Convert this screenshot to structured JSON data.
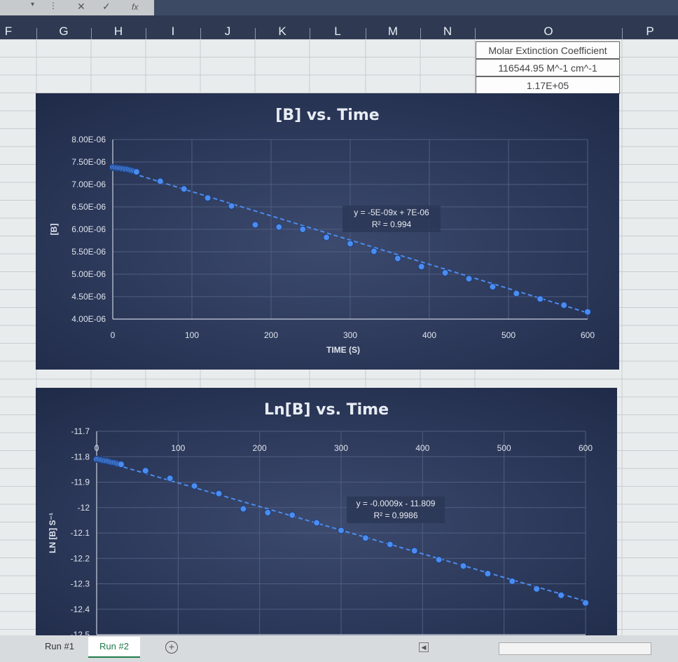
{
  "formula_bar": {
    "cancel_icon": "x-icon",
    "enter_icon": "check-icon",
    "fx_label": "fx"
  },
  "columns": [
    "F",
    "G",
    "H",
    "I",
    "J",
    "K",
    "L",
    "M",
    "N",
    "O",
    "P"
  ],
  "table": {
    "header": "Molar Extinction Coefficient",
    "value": "116544.95 M^-1 cm^-1",
    "sci": "1.17E+05"
  },
  "sheet_tabs": [
    {
      "label": "Run #1"
    },
    {
      "label": "Run #2"
    }
  ],
  "active_tab": "Run #2",
  "chart_data": [
    {
      "type": "scatter",
      "title": "[B] vs. Time",
      "xlabel": "TIME (S)",
      "ylabel": "[B]",
      "xlim": [
        0,
        600
      ],
      "ylim": [
        4e-06,
        8e-06
      ],
      "xticks": [
        "0",
        "100",
        "200",
        "300",
        "400",
        "500",
        "600"
      ],
      "yticks": [
        "4.00E-06",
        "4.50E-06",
        "5.00E-06",
        "5.50E-06",
        "6.00E-06",
        "6.50E-06",
        "7.00E-06",
        "7.50E-06",
        "8.00E-06"
      ],
      "trendline_label": [
        "y = -5E-09x + 7E-06",
        "R² = 0.994"
      ],
      "trendline": {
        "slope": -5.4e-09,
        "intercept": 7.38e-06
      },
      "series": [
        {
          "x": [
            0,
            2,
            4,
            6,
            8,
            10,
            12,
            14,
            16,
            18,
            20,
            22,
            24,
            26,
            28,
            30,
            60,
            90,
            120,
            150,
            180,
            210,
            240,
            270,
            300,
            330,
            360,
            390,
            420,
            450,
            480,
            510,
            540,
            570,
            600
          ],
          "y": [
            7.38e-06,
            7.38e-06,
            7.37e-06,
            7.37e-06,
            7.36e-06,
            7.36e-06,
            7.35e-06,
            7.35e-06,
            7.34e-06,
            7.34e-06,
            7.33e-06,
            7.32e-06,
            7.31e-06,
            7.3e-06,
            7.29e-06,
            7.28e-06,
            7.07e-06,
            6.9e-06,
            6.7e-06,
            6.52e-06,
            6.1e-06,
            6.05e-06,
            6e-06,
            5.82e-06,
            5.68e-06,
            5.51e-06,
            5.35e-06,
            5.17e-06,
            5.03e-06,
            4.9e-06,
            4.72e-06,
            4.57e-06,
            4.45e-06,
            4.31e-06,
            4.16e-06
          ]
        }
      ]
    },
    {
      "type": "scatter",
      "title": "Ln[B] vs. Time",
      "xlabel": "",
      "ylabel": "LN [B] S⁻¹",
      "xlim": [
        0,
        600
      ],
      "ylim": [
        -12.5,
        -11.7
      ],
      "xticks": [
        "0",
        "100",
        "200",
        "300",
        "400",
        "500",
        "600"
      ],
      "yticks": [
        "-12.5",
        "-12.4",
        "-12.3",
        "-12.2",
        "-12.1",
        "-12",
        "-11.9",
        "-11.8",
        "-11.7"
      ],
      "trendline_label": [
        "y = -0.0009x - 11.809",
        "R² = 0.9986"
      ],
      "trendline": {
        "slope": -0.00093,
        "intercept": -11.81
      },
      "series": [
        {
          "x": [
            0,
            2,
            4,
            6,
            8,
            10,
            12,
            14,
            16,
            18,
            20,
            22,
            24,
            26,
            28,
            30,
            60,
            90,
            120,
            150,
            180,
            210,
            240,
            270,
            300,
            330,
            360,
            390,
            420,
            450,
            480,
            510,
            540,
            570,
            600
          ],
          "y": [
            -11.81,
            -11.81,
            -11.812,
            -11.813,
            -11.815,
            -11.816,
            -11.817,
            -11.818,
            -11.82,
            -11.822,
            -11.823,
            -11.824,
            -11.826,
            -11.828,
            -11.829,
            -11.83,
            -11.855,
            -11.885,
            -11.915,
            -11.945,
            -12.005,
            -12.02,
            -12.03,
            -12.06,
            -12.09,
            -12.12,
            -12.145,
            -12.17,
            -12.205,
            -12.23,
            -12.26,
            -12.29,
            -12.32,
            -12.345,
            -12.375
          ]
        }
      ]
    }
  ],
  "colors": {
    "chart_bg": "#1f2a48",
    "point": "#4a8cf0",
    "trend": "#4a8cf0",
    "text": "#e8ecf4"
  }
}
